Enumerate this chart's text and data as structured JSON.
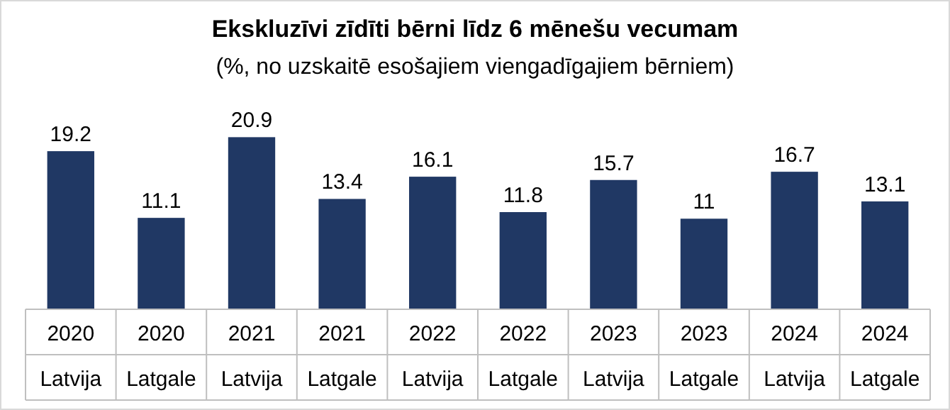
{
  "chart_data": {
    "type": "bar",
    "title": "Ekskluzīvi zīdīti bērni līdz 6 mēnešu vecumam",
    "subtitle": "(%, no uzskaitē esošajiem viengadīgajiem bērniem)",
    "categories": [
      "2020\nLatvija",
      "2020\nLatgale",
      "2021\nLatvija",
      "2021\nLatgale",
      "2022\nLatvija",
      "2022\nLatgale",
      "2023\nLatvija",
      "2023\nLatgale",
      "2024\nLatvija",
      "2024\nLatgale"
    ],
    "values": [
      19.2,
      11.1,
      20.9,
      13.4,
      16.1,
      11.8,
      15.7,
      11,
      16.7,
      13.1
    ],
    "color": "#203864",
    "data_labels": true
  }
}
